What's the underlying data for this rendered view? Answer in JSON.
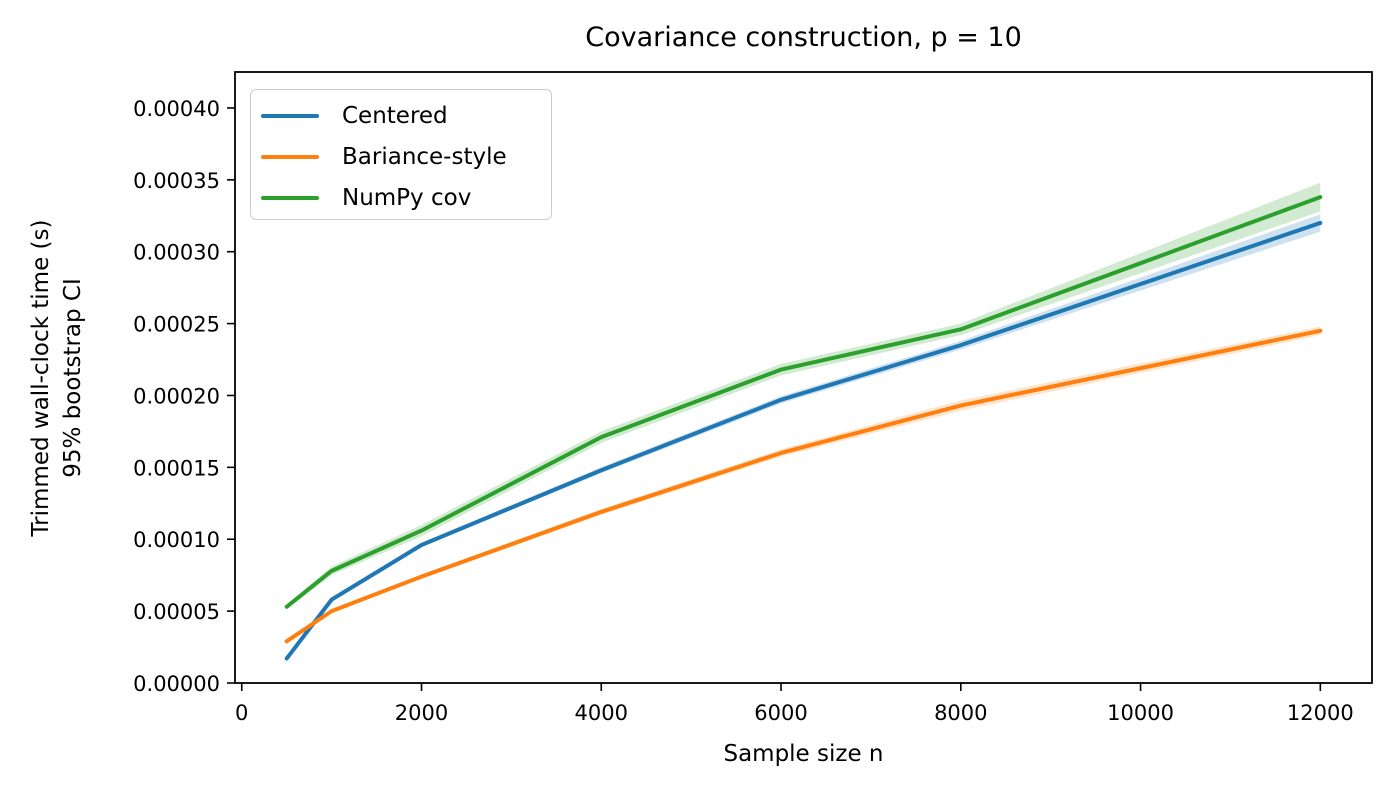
{
  "figure": {
    "title": "Covariance construction, p = 10",
    "xlabel": "Sample size n",
    "ylabel_line1": "Trimmed wall-clock time (s)",
    "ylabel_line2": "95% bootstrap CI"
  },
  "legend": {
    "position": "upper left",
    "items": [
      {
        "label": "Centered",
        "color": "#1f77b4"
      },
      {
        "label": "Bariance-style",
        "color": "#ff7f0e"
      },
      {
        "label": "NumPy cov",
        "color": "#2ca02c"
      }
    ]
  },
  "chart_data": {
    "type": "line",
    "title": "Covariance construction, p = 10",
    "xlabel": "Sample size n",
    "ylabel": "Trimmed wall-clock time (s)\n95% bootstrap CI",
    "grid": false,
    "legend_position": "upper left",
    "x": [
      500,
      1000,
      2000,
      4000,
      6000,
      8000,
      12000
    ],
    "xlim": [
      -75,
      12575
    ],
    "ylim": [
      0,
      0.000425
    ],
    "xticks": [
      0,
      2000,
      4000,
      6000,
      8000,
      10000,
      12000
    ],
    "yticks": [
      0.0,
      5e-05,
      0.0001,
      0.00015,
      0.0002,
      0.00025,
      0.0003,
      0.00035,
      0.0004
    ],
    "ytick_labels": [
      "0.00000",
      "0.00005",
      "0.00010",
      "0.00015",
      "0.00020",
      "0.00025",
      "0.00030",
      "0.00035",
      "0.00040"
    ],
    "series": [
      {
        "name": "Centered",
        "color": "#1f77b4",
        "values": [
          1.7e-05,
          5.8e-05,
          9.6e-05,
          0.000148,
          0.000197,
          0.000235,
          0.00032
        ],
        "ci_lo": [
          1.6e-05,
          5.7e-05,
          9.45e-05,
          0.000146,
          0.0001945,
          0.000232,
          0.000314
        ],
        "ci_hi": [
          1.8e-05,
          5.9e-05,
          9.75e-05,
          0.00015,
          0.0001995,
          0.000238,
          0.000326
        ]
      },
      {
        "name": "Bariance-style",
        "color": "#ff7f0e",
        "values": [
          2.9e-05,
          5e-05,
          7.4e-05,
          0.000119,
          0.00016,
          0.000193,
          0.000245
        ],
        "ci_lo": [
          2.8e-05,
          4.9e-05,
          7.25e-05,
          0.000117,
          0.0001575,
          0.0001895,
          0.000242
        ],
        "ci_hi": [
          3e-05,
          5.1e-05,
          7.55e-05,
          0.000121,
          0.0001625,
          0.0001965,
          0.000248
        ]
      },
      {
        "name": "NumPy cov",
        "color": "#2ca02c",
        "values": [
          5.3e-05,
          7.8e-05,
          0.000106,
          0.000171,
          0.000218,
          0.000246,
          0.000338
        ],
        "ci_lo": [
          5.15e-05,
          7.5e-05,
          0.000102,
          0.000167,
          0.000214,
          0.000242,
          0.000328
        ],
        "ci_hi": [
          5.45e-05,
          8.1e-05,
          0.00011,
          0.000175,
          0.000222,
          0.00025,
          0.000348
        ]
      }
    ],
    "band_alpha": 0.22,
    "line_width": 4
  }
}
